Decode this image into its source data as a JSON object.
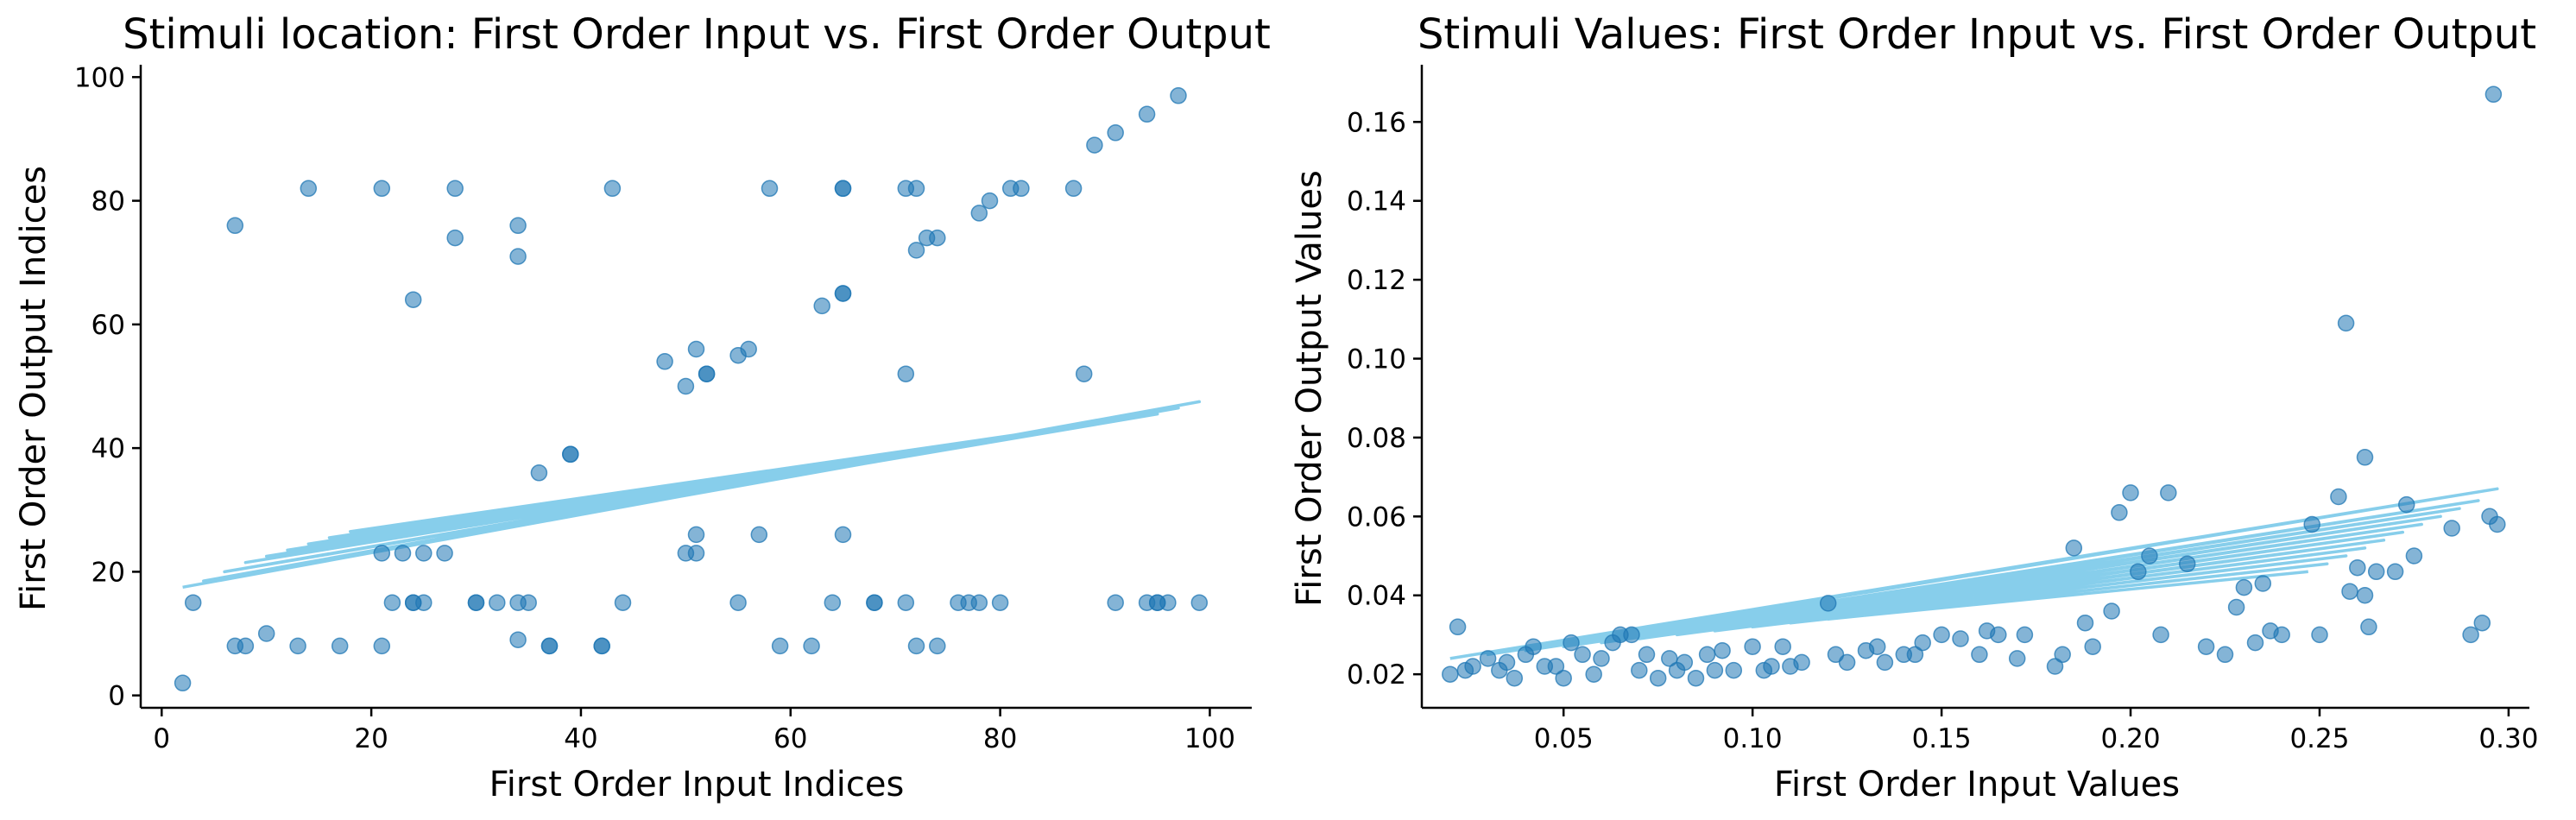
{
  "chart_data": [
    {
      "type": "scatter",
      "title": "Stimuli location: First Order Input vs. First Order Output",
      "xlabel": "First Order Input Indices",
      "ylabel": "First Order Output Indices",
      "xlim": [
        -2,
        104
      ],
      "ylim": [
        -2,
        102
      ],
      "xticks": [
        0,
        20,
        40,
        60,
        80,
        100
      ],
      "yticks": [
        0,
        20,
        40,
        60,
        80,
        100
      ],
      "grid": false,
      "point_color": "#1f77b4",
      "point_alpha": 0.55,
      "line_color": "#87ceeb",
      "points": {
        "x": [
          2,
          3,
          7,
          8,
          10,
          13,
          14,
          17,
          21,
          21,
          21,
          22,
          23,
          24,
          24,
          25,
          25,
          27,
          28,
          28,
          30,
          30,
          32,
          34,
          34,
          34,
          34,
          35,
          36,
          37,
          37,
          39,
          39,
          42,
          42,
          43,
          44,
          48,
          50,
          50,
          51,
          51,
          51,
          52,
          52,
          55,
          55,
          56,
          57,
          58,
          59,
          62,
          63,
          64,
          65,
          65,
          65,
          65,
          65,
          68,
          68,
          71,
          71,
          71,
          72,
          72,
          72,
          73,
          74,
          74,
          76,
          77,
          78,
          78,
          79,
          80,
          81,
          82,
          87,
          88,
          89,
          91,
          91,
          94,
          94,
          95,
          95,
          96,
          97,
          99,
          7,
          24
        ],
        "y": [
          2,
          15,
          76,
          8,
          10,
          8,
          82,
          8,
          82,
          8,
          23,
          15,
          23,
          15,
          64,
          15,
          23,
          23,
          82,
          74,
          15,
          15,
          15,
          76,
          71,
          9,
          15,
          15,
          36,
          8,
          8,
          39,
          39,
          8,
          8,
          82,
          15,
          54,
          23,
          50,
          56,
          26,
          23,
          52,
          52,
          55,
          15,
          56,
          26,
          82,
          8,
          8,
          63,
          15,
          82,
          65,
          65,
          26,
          82,
          15,
          15,
          82,
          52,
          15,
          72,
          82,
          8,
          74,
          74,
          8,
          15,
          15,
          15,
          78,
          80,
          15,
          82,
          82,
          82,
          52,
          89,
          91,
          15,
          94,
          15,
          15,
          15,
          15,
          97,
          15,
          8,
          15
        ]
      },
      "line": {
        "x": [
          2,
          99,
          4,
          97,
          6,
          95,
          8,
          93,
          10,
          91,
          12,
          89,
          14,
          87,
          16,
          85,
          18,
          83,
          20,
          81,
          22,
          79
        ],
        "y": [
          17.5,
          47.5,
          18.5,
          46.5,
          20.0,
          45.5,
          21.5,
          45.0,
          22.5,
          44.5,
          23.5,
          44.0,
          24.5,
          43.5,
          25.5,
          43.0,
          26.5,
          42.5,
          27.0,
          42.0,
          27.5,
          41.5
        ]
      }
    },
    {
      "type": "scatter",
      "title": "Stimuli Values: First Order Input vs. First Order Output",
      "xlabel": "First Order Input Values",
      "ylabel": "First Order Output Values",
      "xlim": [
        0.0125,
        0.3055
      ],
      "ylim": [
        0.0115,
        0.1745
      ],
      "xticks": [
        0.05,
        0.1,
        0.15,
        0.2,
        0.25,
        0.3
      ],
      "yticks": [
        0.02,
        0.04,
        0.06,
        0.08,
        0.1,
        0.12,
        0.14,
        0.16
      ],
      "grid": false,
      "point_color": "#1f77b4",
      "point_alpha": 0.55,
      "line_color": "#87ceeb",
      "points": {
        "x": [
          0.02,
          0.022,
          0.024,
          0.026,
          0.03,
          0.033,
          0.035,
          0.037,
          0.04,
          0.042,
          0.045,
          0.048,
          0.05,
          0.052,
          0.055,
          0.058,
          0.06,
          0.063,
          0.065,
          0.068,
          0.07,
          0.072,
          0.075,
          0.078,
          0.08,
          0.082,
          0.085,
          0.088,
          0.09,
          0.092,
          0.095,
          0.1,
          0.103,
          0.105,
          0.108,
          0.11,
          0.113,
          0.12,
          0.122,
          0.125,
          0.13,
          0.133,
          0.135,
          0.14,
          0.143,
          0.145,
          0.15,
          0.155,
          0.16,
          0.162,
          0.165,
          0.17,
          0.172,
          0.18,
          0.182,
          0.185,
          0.188,
          0.19,
          0.195,
          0.197,
          0.2,
          0.202,
          0.205,
          0.208,
          0.21,
          0.215,
          0.22,
          0.225,
          0.228,
          0.23,
          0.233,
          0.235,
          0.237,
          0.24,
          0.248,
          0.25,
          0.255,
          0.257,
          0.258,
          0.26,
          0.262,
          0.262,
          0.263,
          0.265,
          0.27,
          0.273,
          0.275,
          0.285,
          0.29,
          0.293,
          0.295,
          0.296,
          0.297
        ],
        "y": [
          0.02,
          0.032,
          0.021,
          0.022,
          0.024,
          0.021,
          0.023,
          0.019,
          0.025,
          0.027,
          0.022,
          0.022,
          0.019,
          0.028,
          0.025,
          0.02,
          0.024,
          0.028,
          0.03,
          0.03,
          0.021,
          0.025,
          0.019,
          0.024,
          0.021,
          0.023,
          0.019,
          0.025,
          0.021,
          0.026,
          0.021,
          0.027,
          0.021,
          0.022,
          0.027,
          0.022,
          0.023,
          0.038,
          0.025,
          0.023,
          0.026,
          0.027,
          0.023,
          0.025,
          0.025,
          0.028,
          0.03,
          0.029,
          0.025,
          0.031,
          0.03,
          0.024,
          0.03,
          0.022,
          0.025,
          0.052,
          0.033,
          0.027,
          0.036,
          0.061,
          0.066,
          0.046,
          0.05,
          0.03,
          0.066,
          0.048,
          0.027,
          0.025,
          0.037,
          0.042,
          0.028,
          0.043,
          0.031,
          0.03,
          0.058,
          0.03,
          0.065,
          0.109,
          0.041,
          0.047,
          0.075,
          0.04,
          0.032,
          0.046,
          0.046,
          0.063,
          0.05,
          0.057,
          0.03,
          0.033,
          0.06,
          0.167,
          0.058
        ],
        "marked_extra": []
      },
      "line": {
        "x": [
          0.02,
          0.297,
          0.03,
          0.292,
          0.04,
          0.287,
          0.05,
          0.282,
          0.06,
          0.277,
          0.07,
          0.272,
          0.08,
          0.267,
          0.09,
          0.262,
          0.1,
          0.257,
          0.11,
          0.252,
          0.12,
          0.247
        ],
        "y": [
          0.024,
          0.067,
          0.025,
          0.064,
          0.026,
          0.062,
          0.027,
          0.06,
          0.028,
          0.058,
          0.029,
          0.056,
          0.03,
          0.054,
          0.031,
          0.052,
          0.032,
          0.05,
          0.033,
          0.048,
          0.034,
          0.046
        ]
      }
    }
  ]
}
